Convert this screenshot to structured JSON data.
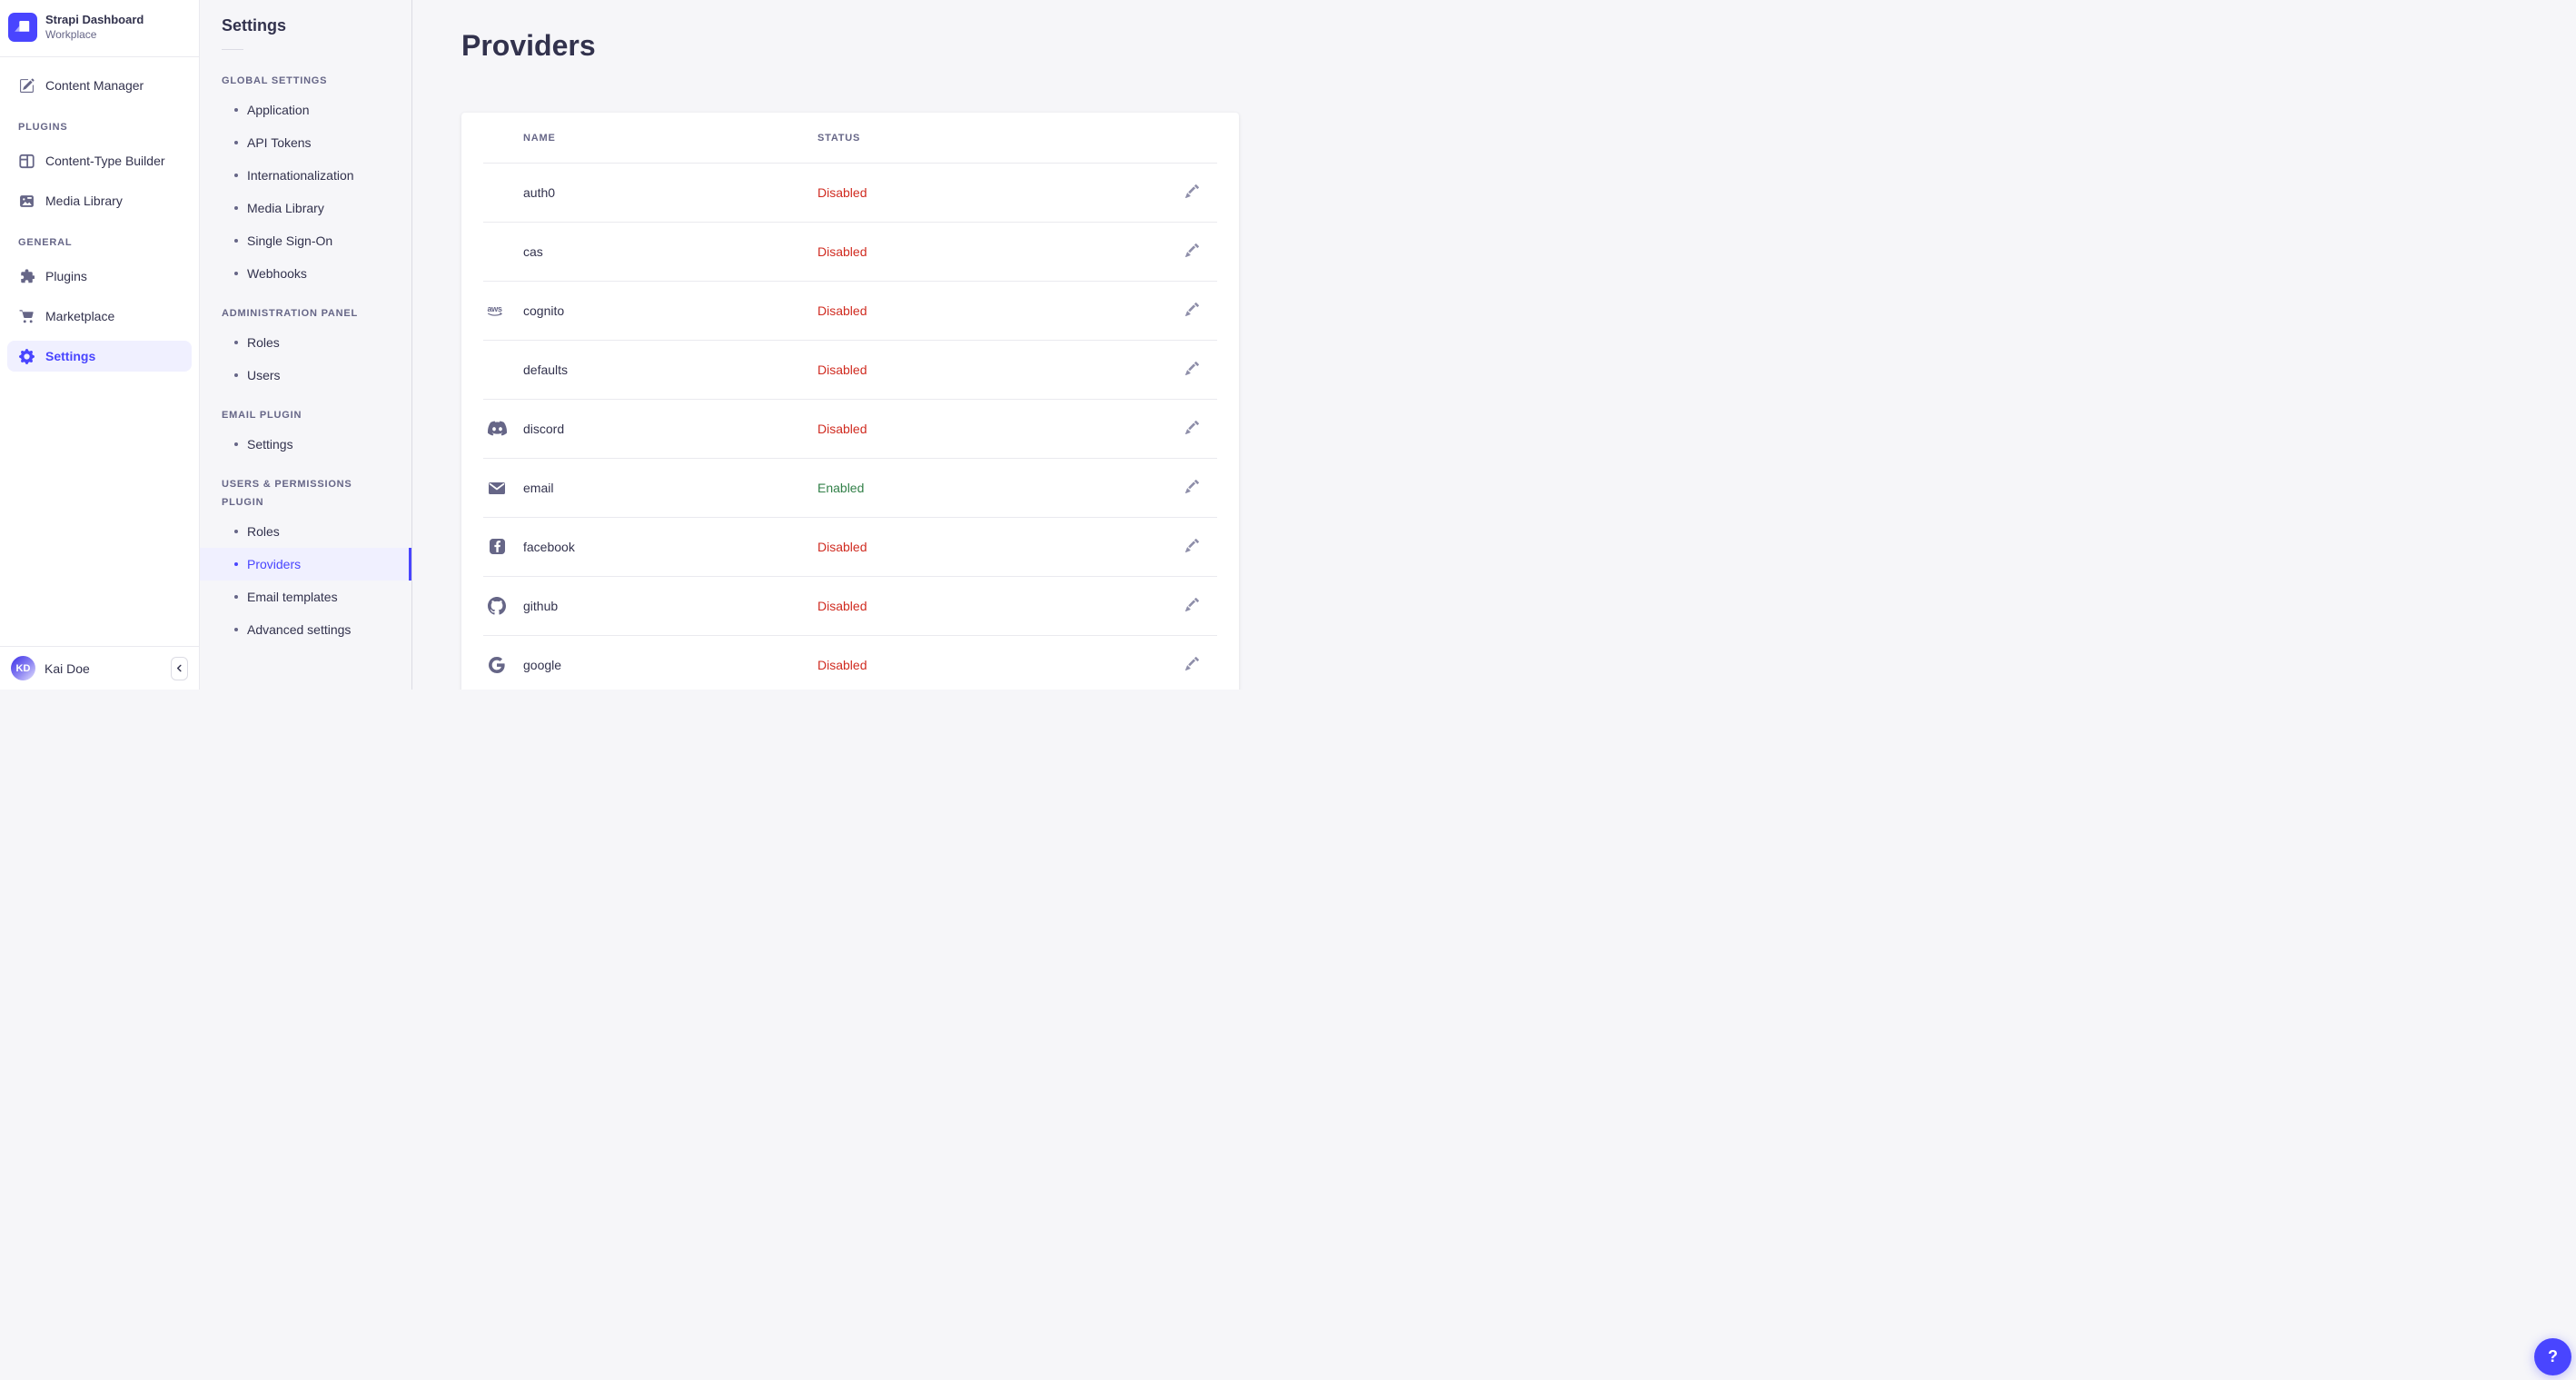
{
  "brand": {
    "name": "Strapi Dashboard",
    "workspace": "Workplace",
    "logo_icon": "strapi-logo-icon"
  },
  "main_nav": {
    "content_manager": "Content Manager",
    "content_manager_icon": "write-icon",
    "sections": [
      {
        "label": "PLUGINS",
        "items": [
          {
            "label": "Content-Type Builder",
            "icon": "layout-icon",
            "active": false
          },
          {
            "label": "Media Library",
            "icon": "image-icon",
            "active": false
          }
        ]
      },
      {
        "label": "GENERAL",
        "items": [
          {
            "label": "Plugins",
            "icon": "puzzle-icon",
            "active": false
          },
          {
            "label": "Marketplace",
            "icon": "cart-icon",
            "active": false
          },
          {
            "label": "Settings",
            "icon": "gear-icon",
            "active": true
          }
        ]
      }
    ]
  },
  "user": {
    "name": "Kai Doe",
    "initials": "KD",
    "collapse_icon": "chevron-left-icon"
  },
  "settings_nav": {
    "title": "Settings",
    "sections": [
      {
        "label": "GLOBAL SETTINGS",
        "active_item": "",
        "items": [
          "Application",
          "API Tokens",
          "Internationalization",
          "Media Library",
          "Single Sign-On",
          "Webhooks"
        ]
      },
      {
        "label": "ADMINISTRATION PANEL",
        "active_item": "",
        "items": [
          "Roles",
          "Users"
        ]
      },
      {
        "label": "EMAIL PLUGIN",
        "active_item": "",
        "items": [
          "Settings"
        ]
      },
      {
        "label": "USERS & PERMISSIONS PLUGIN",
        "active_item": "Providers",
        "items": [
          "Roles",
          "Providers",
          "Email templates",
          "Advanced settings"
        ]
      }
    ]
  },
  "page": {
    "title": "Providers"
  },
  "table": {
    "headers": [
      "NAME",
      "STATUS"
    ],
    "rows": [
      {
        "name": "auth0",
        "icon": "",
        "status": "Disabled"
      },
      {
        "name": "cas",
        "icon": "",
        "status": "Disabled"
      },
      {
        "name": "cognito",
        "icon": "aws-icon",
        "status": "Disabled"
      },
      {
        "name": "defaults",
        "icon": "",
        "status": "Disabled"
      },
      {
        "name": "discord",
        "icon": "discord-icon",
        "status": "Disabled"
      },
      {
        "name": "email",
        "icon": "envelope-icon",
        "status": "Enabled"
      },
      {
        "name": "facebook",
        "icon": "facebook-icon",
        "status": "Disabled"
      },
      {
        "name": "github",
        "icon": "github-icon",
        "status": "Disabled"
      },
      {
        "name": "google",
        "icon": "google-icon",
        "status": "Disabled"
      }
    ]
  },
  "help": {
    "label": "?",
    "icon": "question-icon"
  },
  "colors": {
    "primary": "#4945ff",
    "primary_bg": "#f0f0ff",
    "danger": "#d02b20",
    "success": "#328048",
    "text_dark": "#32324d",
    "text_muted": "#666687",
    "divider": "#eaeaef",
    "card_bg": "#ffffff",
    "app_bg": "#f6f6f9"
  }
}
